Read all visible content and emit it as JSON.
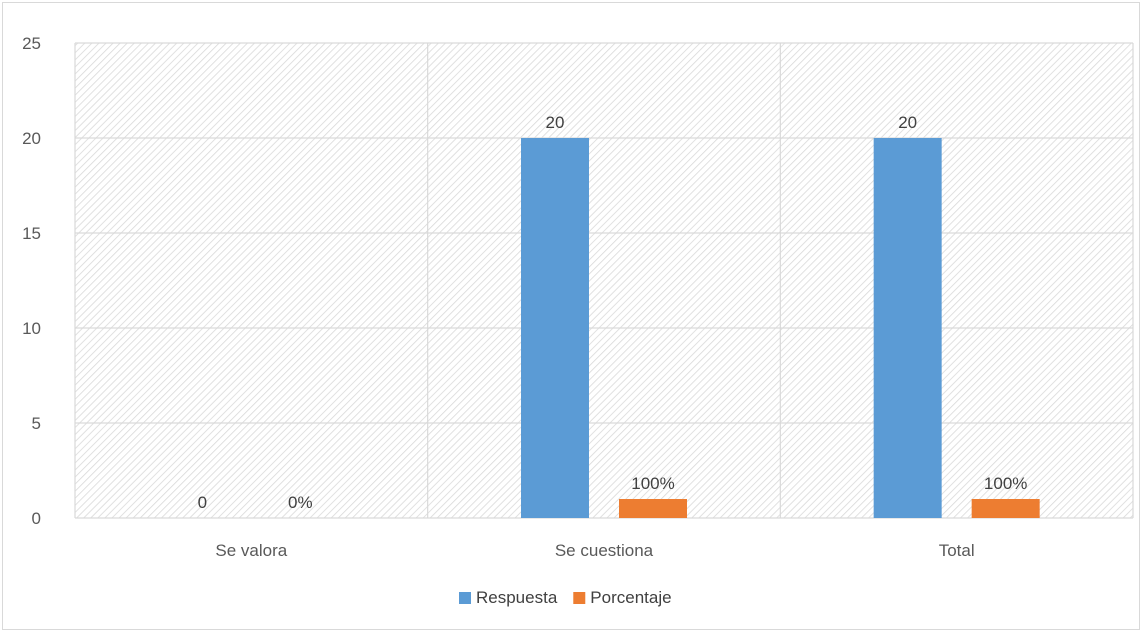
{
  "chart_data": {
    "type": "bar",
    "categories": [
      "Se valora",
      "Se cuestiona",
      "Total"
    ],
    "series": [
      {
        "name": "Respuesta",
        "values": [
          0,
          20,
          20
        ],
        "labels": [
          "0",
          "20",
          "20"
        ],
        "color": "#5b9bd5"
      },
      {
        "name": "Porcentaje",
        "values": [
          0,
          1,
          1
        ],
        "labels": [
          "0%",
          "100%",
          "100%"
        ],
        "color": "#ed7d31"
      }
    ],
    "ylim": [
      0,
      25
    ],
    "yticks": [
      "0",
      "5",
      "10",
      "15",
      "20",
      "25"
    ],
    "grid": true,
    "legend_position": "bottom",
    "plot_fill": "diagonal-hatch"
  }
}
